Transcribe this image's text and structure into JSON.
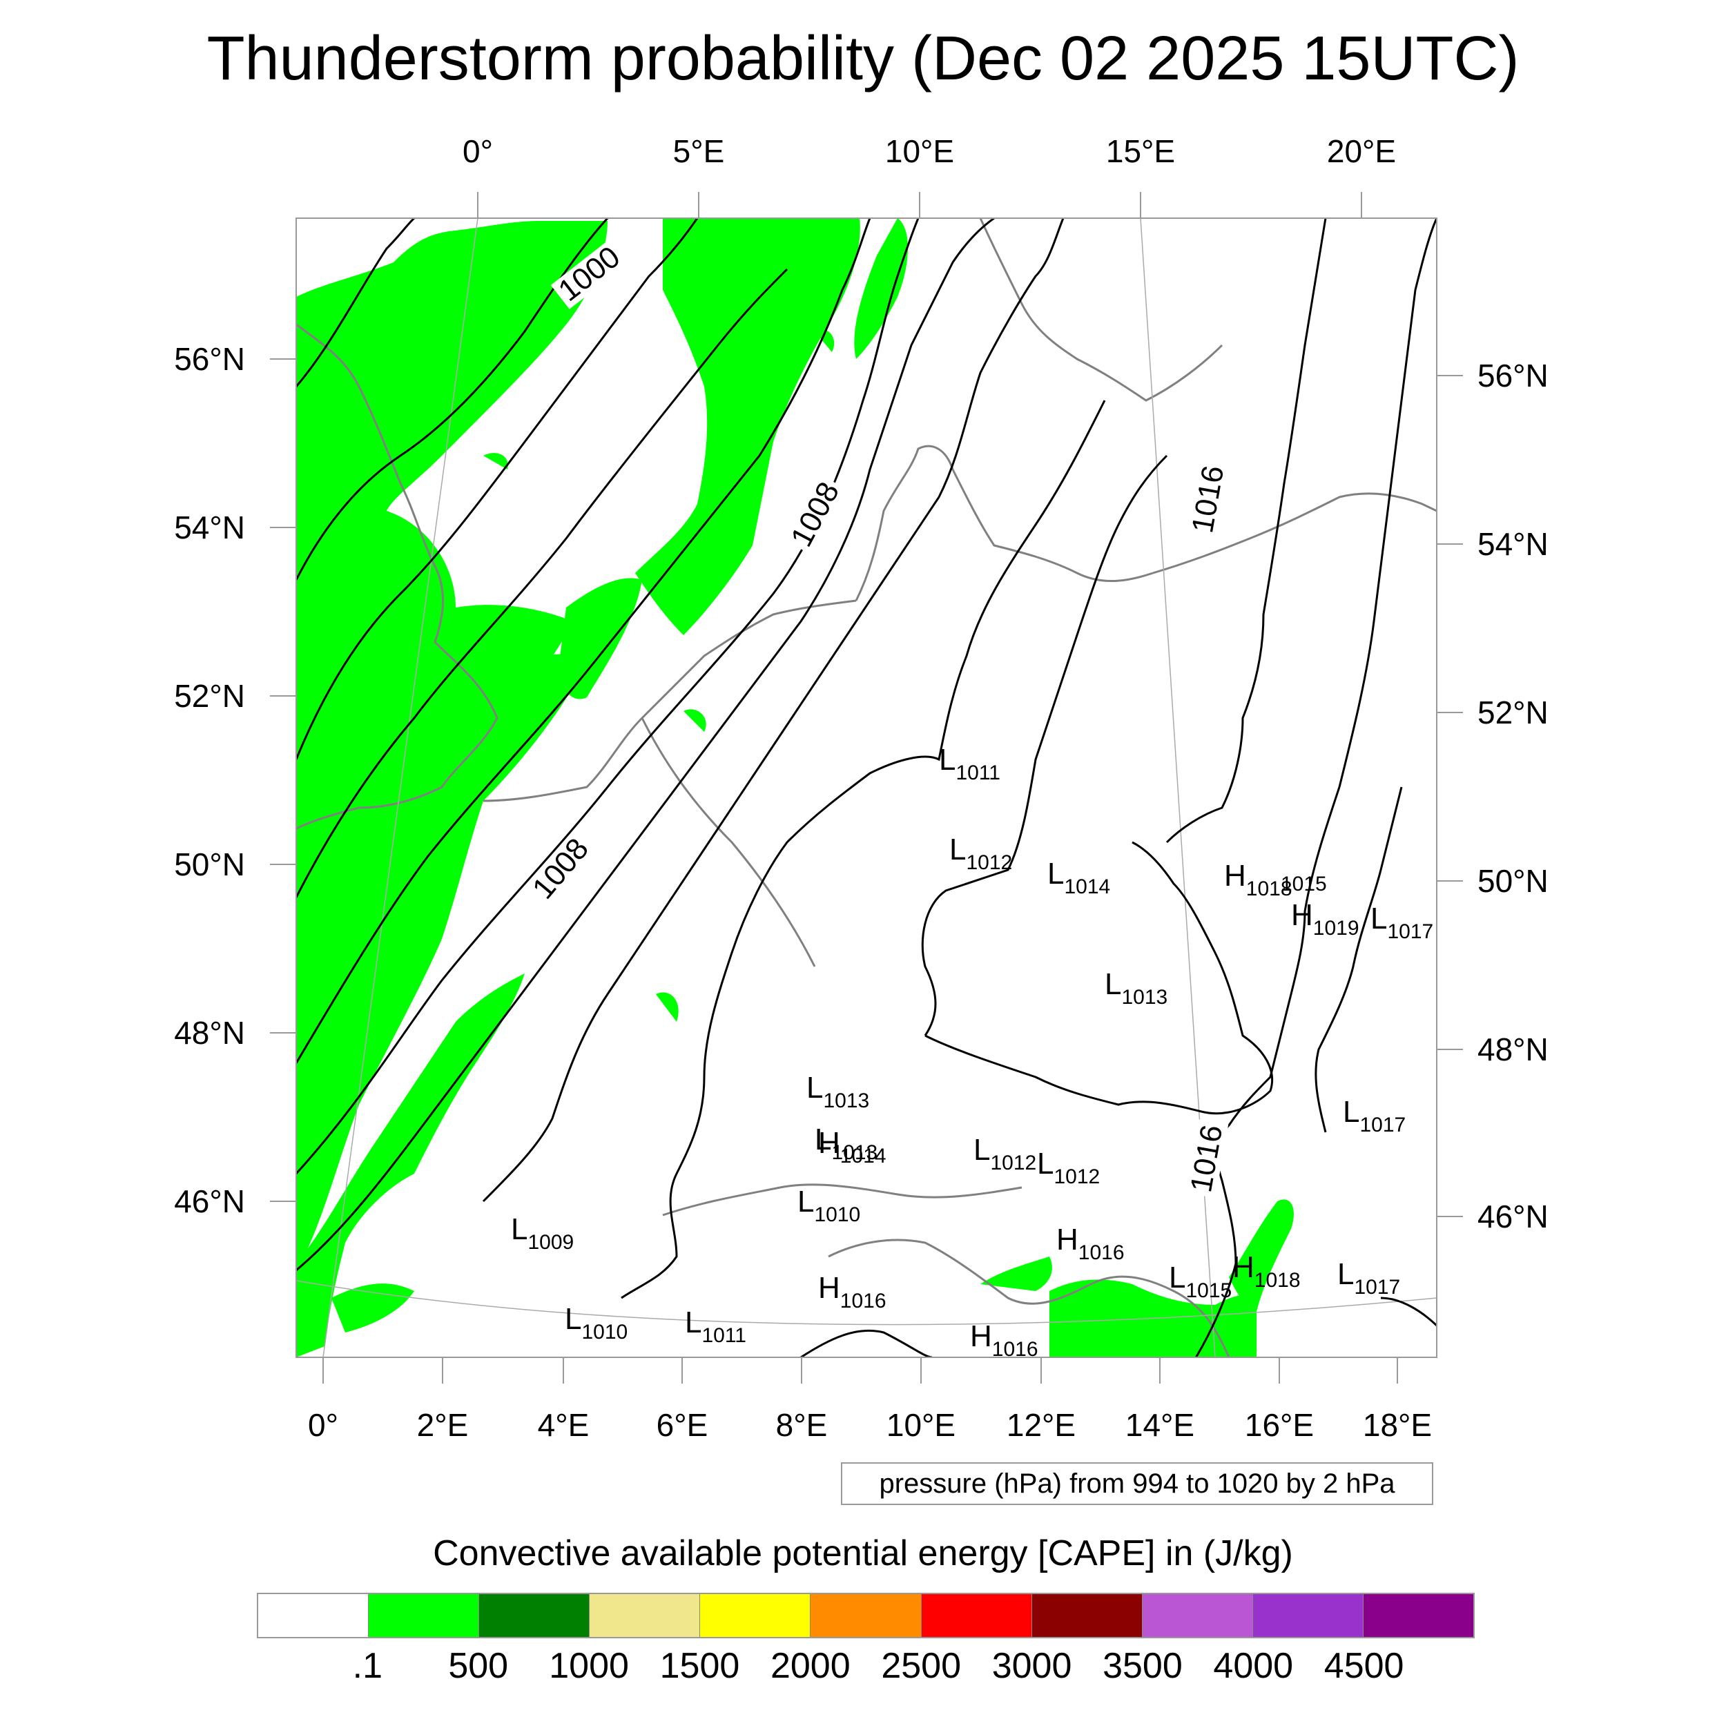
{
  "title": "Thunderstorm probability (Dec 02 2025 15UTC)",
  "top_ticks": [
    "0°",
    "5°E",
    "10°E",
    "15°E",
    "20°E"
  ],
  "bottom_ticks": [
    "0°",
    "2°E",
    "4°E",
    "6°E",
    "8°E",
    "10°E",
    "12°E",
    "14°E",
    "16°E",
    "18°E"
  ],
  "left_ticks": [
    "56°N",
    "54°N",
    "52°N",
    "50°N",
    "48°N",
    "46°N"
  ],
  "right_ticks": [
    "56°N",
    "54°N",
    "52°N",
    "50°N",
    "48°N",
    "46°N"
  ],
  "isobar_labels": [
    "1000",
    "1008",
    "1008",
    "1016",
    "1016"
  ],
  "pressure_centers": [
    {
      "type": "L",
      "value": "1011"
    },
    {
      "type": "L",
      "value": "1012"
    },
    {
      "type": "L",
      "value": "1014"
    },
    {
      "type": "L",
      "value": "1013"
    },
    {
      "type": "H",
      "value": "1018"
    },
    {
      "type": "",
      "value": "1015"
    },
    {
      "type": "H",
      "value": "1019"
    },
    {
      "type": "L",
      "value": "1017"
    },
    {
      "type": "L",
      "value": "1013"
    },
    {
      "type": "L",
      "value": "1013"
    },
    {
      "type": "H",
      "value": "1014"
    },
    {
      "type": "L",
      "value": "1012"
    },
    {
      "type": "L",
      "value": "1012"
    },
    {
      "type": "L",
      "value": "1010"
    },
    {
      "type": "L",
      "value": "1017"
    },
    {
      "type": "L",
      "value": "1009"
    },
    {
      "type": "H",
      "value": "1016"
    },
    {
      "type": "H",
      "value": "1016"
    },
    {
      "type": "L",
      "value": "1015"
    },
    {
      "type": "H",
      "value": "1018"
    },
    {
      "type": "L",
      "value": "1017"
    },
    {
      "type": "L",
      "value": "1010"
    },
    {
      "type": "L",
      "value": "1011"
    },
    {
      "type": "H",
      "value": "1016"
    }
  ],
  "pressure_note": "pressure (hPa) from 994 to 1020 by 2 hPa",
  "colorbar": {
    "title": "Convective available potential energy [CAPE] in (J/kg)",
    "colors": [
      "#ffffff",
      "#00ff00",
      "#008000",
      "#f0e68c",
      "#ffff00",
      "#ff8c00",
      "#ff0000",
      "#8b0000",
      "#ba55d3",
      "#9932cc",
      "#8b008b"
    ],
    "labels": [
      ".1",
      "500",
      "1000",
      "1500",
      "2000",
      "2500",
      "3000",
      "3500",
      "4000",
      "4500"
    ]
  }
}
